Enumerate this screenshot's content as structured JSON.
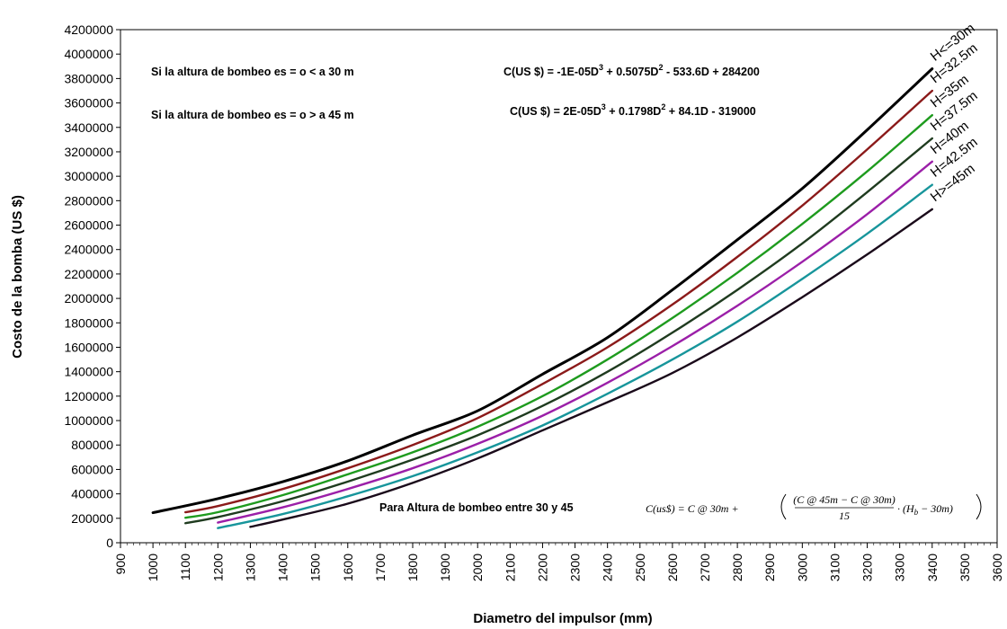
{
  "chart_data": {
    "type": "line",
    "xlabel": "Diametro del impulsor (mm)",
    "ylabel": "Costo de la bomba (US $)",
    "xlim": [
      900,
      3600
    ],
    "ylim": [
      0,
      4200000
    ],
    "xticks": [
      900,
      1000,
      1100,
      1200,
      1300,
      1400,
      1500,
      1600,
      1700,
      1800,
      1900,
      2000,
      2100,
      2200,
      2300,
      2400,
      2500,
      2600,
      2700,
      2800,
      2900,
      3000,
      3100,
      3200,
      3300,
      3400,
      3500,
      3600
    ],
    "yticks": [
      0,
      200000,
      400000,
      600000,
      800000,
      1000000,
      1200000,
      1400000,
      1600000,
      1800000,
      2000000,
      2200000,
      2400000,
      2600000,
      2800000,
      3000000,
      3200000,
      3400000,
      3600000,
      3800000,
      4000000,
      4200000
    ],
    "grid": false,
    "legend": "curve labels at right end",
    "series": [
      {
        "name": "H<=30m",
        "color": "#000000",
        "x": [
          1000,
          1200,
          1400,
          1600,
          1800,
          2000,
          2200,
          2400,
          2600,
          2800,
          3000,
          3200,
          3400
        ],
        "y": [
          246000,
          361000,
          500000,
          670000,
          880000,
          1080000,
          1380000,
          1680000,
          2070000,
          2480000,
          2900000,
          3380000,
          3880000
        ]
      },
      {
        "name": "H=32.5m",
        "color": "#8B1A1A",
        "x": [
          1100,
          1200,
          1400,
          1600,
          1800,
          2000,
          2200,
          2400,
          2600,
          2800,
          3000,
          3200,
          3400
        ],
        "y": [
          250000,
          300000,
          440000,
          610000,
          800000,
          1020000,
          1300000,
          1600000,
          1950000,
          2340000,
          2760000,
          3220000,
          3700000
        ]
      },
      {
        "name": "H=35m",
        "color": "#1E9B1E",
        "x": [
          1100,
          1200,
          1400,
          1600,
          1800,
          2000,
          2200,
          2400,
          2600,
          2800,
          3000,
          3200,
          3400
        ],
        "y": [
          205000,
          250000,
          390000,
          560000,
          740000,
          950000,
          1200000,
          1500000,
          1840000,
          2210000,
          2610000,
          3040000,
          3500000
        ]
      },
      {
        "name": "H=37.5m",
        "color": "#1F3B1F",
        "x": [
          1100,
          1200,
          1400,
          1600,
          1800,
          2000,
          2200,
          2400,
          2600,
          2800,
          3000,
          3200,
          3400
        ],
        "y": [
          160000,
          210000,
          340000,
          500000,
          680000,
          880000,
          1120000,
          1400000,
          1720000,
          2070000,
          2450000,
          2870000,
          3310000
        ]
      },
      {
        "name": "H=40m",
        "color": "#9B1FA8",
        "x": [
          1200,
          1400,
          1600,
          1800,
          2000,
          2200,
          2400,
          2600,
          2800,
          3000,
          3200,
          3400
        ],
        "y": [
          165000,
          290000,
          440000,
          610000,
          810000,
          1040000,
          1310000,
          1610000,
          1940000,
          2300000,
          2690000,
          3120000
        ]
      },
      {
        "name": "H=42.5m",
        "color": "#17959B",
        "x": [
          1200,
          1400,
          1600,
          1800,
          2000,
          2200,
          2400,
          2600,
          2800,
          3000,
          3200,
          3400
        ],
        "y": [
          120000,
          235000,
          380000,
          545000,
          740000,
          960000,
          1220000,
          1500000,
          1810000,
          2160000,
          2530000,
          2930000
        ]
      },
      {
        "name": "H>=45m",
        "color": "#1A0A1A",
        "x": [
          1300,
          1400,
          1600,
          1800,
          2000,
          2200,
          2400,
          2600,
          2800,
          3000,
          3200,
          3400
        ],
        "y": [
          130000,
          190000,
          320000,
          490000,
          690000,
          920000,
          1150000,
          1390000,
          1680000,
          2010000,
          2360000,
          2730000
        ]
      }
    ],
    "annotations": {
      "note1": "Si la altura de bombeo es = o < a 30 m",
      "eq1": {
        "text": "C(US $) = -1E-05D",
        "e1": "3",
        "m1": " + 0.5075D",
        "e2": "2",
        "m2": " - 533.6D + 284200"
      },
      "note2": "Si la altura de bombeo es = o > a 45 m",
      "eq2": {
        "text": "C(US $) = 2E-05D",
        "e1": "3",
        "m1": " + 0.1798D",
        "e2": "2",
        "m2": " + 84.1D - 319000"
      },
      "note3": "Para Altura de bombeo entre 30 y 45",
      "formula": {
        "lhs": "C(us$) = C @ 30m +",
        "numerator": "(C @ 45m − C @ 30m)",
        "denominator": "15",
        "tail": "· (H",
        "sub": "b",
        "tail2": " − 30m)"
      }
    }
  }
}
